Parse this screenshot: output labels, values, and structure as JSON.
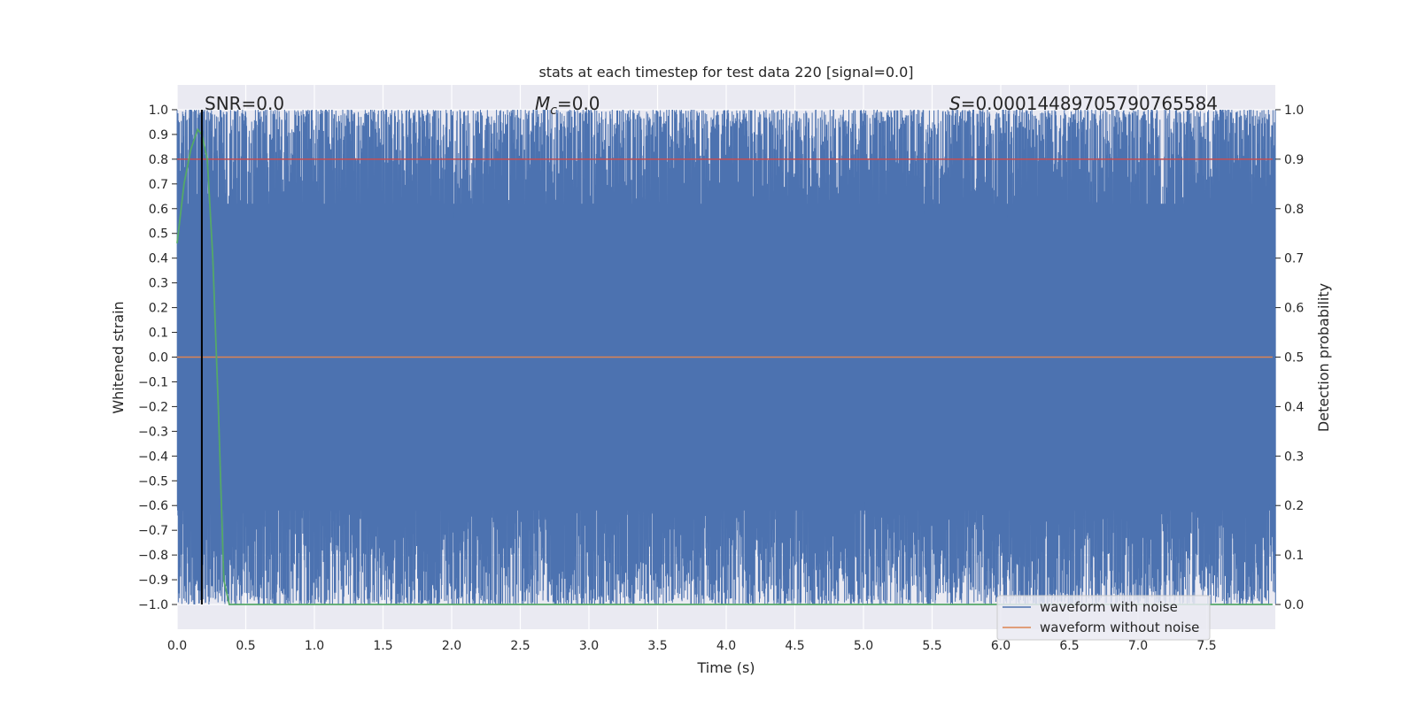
{
  "chart_data": {
    "type": "line",
    "title": "stats at each timestep for test data 220 [signal=0.0]",
    "xlabel": "Time (s)",
    "ylabel_left": "Whitened strain",
    "ylabel_right": "Detection probability",
    "xlim": [
      0.0,
      8.0
    ],
    "ylim_left": [
      -1.1,
      1.1
    ],
    "ylim_right": [
      -0.05,
      1.05
    ],
    "xticks": [
      0.0,
      0.5,
      1.0,
      1.5,
      2.0,
      2.5,
      3.0,
      3.5,
      4.0,
      4.5,
      5.0,
      5.5,
      6.0,
      6.5,
      7.0,
      7.5
    ],
    "xtick_labels": [
      "0.0",
      "0.5",
      "1.0",
      "1.5",
      "2.0",
      "2.5",
      "3.0",
      "3.5",
      "4.0",
      "4.5",
      "5.0",
      "5.5",
      "6.0",
      "6.5",
      "7.0",
      "7.5"
    ],
    "yticks_left": [
      1.0,
      0.9,
      0.8,
      0.7,
      0.6,
      0.5,
      0.4,
      0.3,
      0.2,
      0.1,
      0.0,
      -0.1,
      -0.2,
      -0.3,
      -0.4,
      -0.5,
      -0.6,
      -0.7,
      -0.8,
      -0.9,
      -1.0
    ],
    "ytick_labels_left": [
      "1.0",
      "0.9",
      "0.8",
      "0.7",
      "0.6",
      "0.5",
      "0.4",
      "0.3",
      "0.2",
      "0.1",
      "0.0",
      "−0.1",
      "−0.2",
      "−0.3",
      "−0.4",
      "−0.5",
      "−0.6",
      "−0.7",
      "−0.8",
      "−0.9",
      "−1.0"
    ],
    "yticks_right": [
      1.0,
      0.9,
      0.8,
      0.7,
      0.6,
      0.5,
      0.4,
      0.3,
      0.2,
      0.1,
      0.0
    ],
    "ytick_labels_right": [
      "1.0",
      "0.9",
      "0.8",
      "0.7",
      "0.6",
      "0.5",
      "0.4",
      "0.3",
      "0.2",
      "0.1",
      "0.0"
    ],
    "grid": true,
    "legend_position": "bottom-right",
    "annotations": {
      "snr": "SNR=0.0",
      "mc_symbol": "M",
      "mc_sub": "c",
      "mc_value": "=0.0",
      "s_symbol": "S",
      "s_value": "=0.00014489705790765584"
    },
    "vertical_marker_x": 0.18,
    "series": [
      {
        "name": "waveform with noise",
        "color": "#4c72b0",
        "axis": "left",
        "description_range": [
          -1.0,
          1.0
        ]
      },
      {
        "name": "waveform without noise",
        "color": "#dd8452",
        "axis": "left",
        "x": [
          0.0,
          8.0
        ],
        "y": [
          0.0,
          0.0
        ]
      },
      {
        "name": "",
        "color": "#55a868",
        "axis": "right",
        "x": [
          0.0,
          0.05,
          0.1,
          0.15,
          0.18,
          0.22,
          0.26,
          0.3,
          0.34,
          0.38,
          8.0
        ],
        "y": [
          0.73,
          0.85,
          0.92,
          0.96,
          0.95,
          0.9,
          0.7,
          0.4,
          0.05,
          0.0,
          0.0
        ]
      },
      {
        "name": "",
        "color": "#c44e52",
        "axis": "right",
        "x": [
          0.0,
          8.0
        ],
        "y": [
          0.9,
          0.9
        ]
      }
    ]
  },
  "colors": {
    "plot_background": "#eaeaf2",
    "grid": "#ffffff",
    "noise_fill": "#4c72b0",
    "marker": "#000000"
  }
}
